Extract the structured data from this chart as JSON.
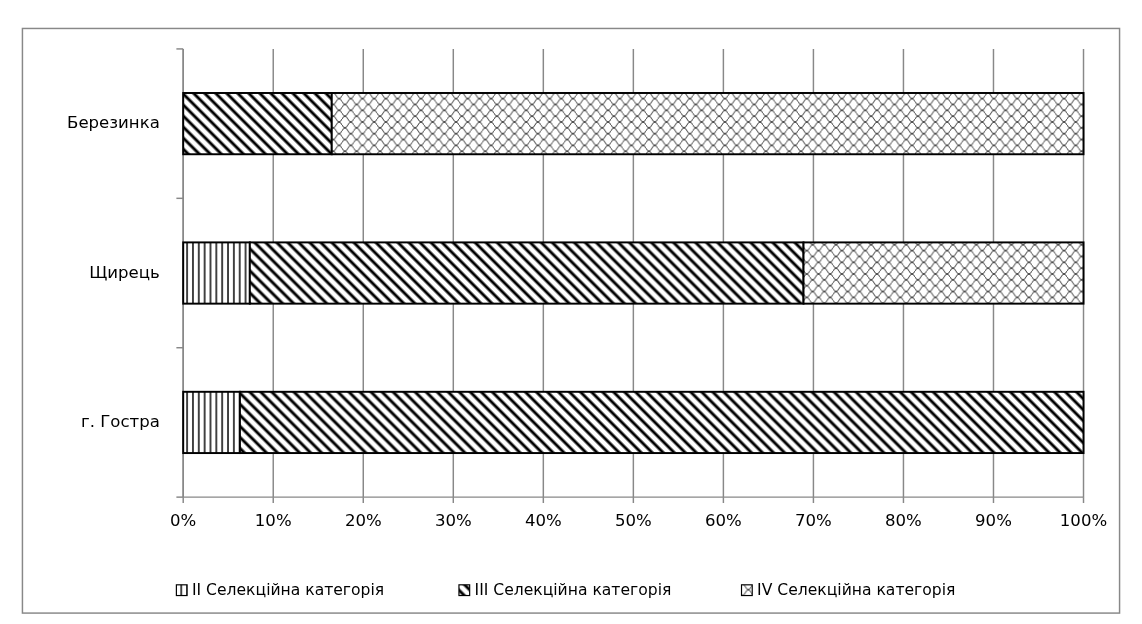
{
  "chart_data": {
    "type": "bar",
    "orientation": "horizontal",
    "stacked": true,
    "categories": [
      "Березинка",
      "Щирець",
      "г. Гостра"
    ],
    "series": [
      {
        "name": "II Селекційна категорія",
        "color": "#000000",
        "values": [
          0,
          7.4,
          6.3
        ]
      },
      {
        "name": "III Селекційна категорія",
        "color": "#000000",
        "values": [
          16.5,
          61.5,
          93.7
        ]
      },
      {
        "name": "IV Селекційна категорія",
        "color": "#000000",
        "values": [
          83.5,
          31.1,
          0
        ]
      }
    ],
    "xlim": [
      0,
      100
    ],
    "xticks": [
      {
        "value": 0,
        "label": "0%"
      },
      {
        "value": 10,
        "label": "10%"
      },
      {
        "value": 20,
        "label": "20%"
      },
      {
        "value": 30,
        "label": "30%"
      },
      {
        "value": 40,
        "label": "40%"
      },
      {
        "value": 50,
        "label": "50%"
      },
      {
        "value": 60,
        "label": "60%"
      },
      {
        "value": 70,
        "label": "70%"
      },
      {
        "value": 80,
        "label": "80%"
      },
      {
        "value": 90,
        "label": "90%"
      },
      {
        "value": 100,
        "label": "100%"
      }
    ],
    "grid": "x",
    "legend": "bottom"
  }
}
